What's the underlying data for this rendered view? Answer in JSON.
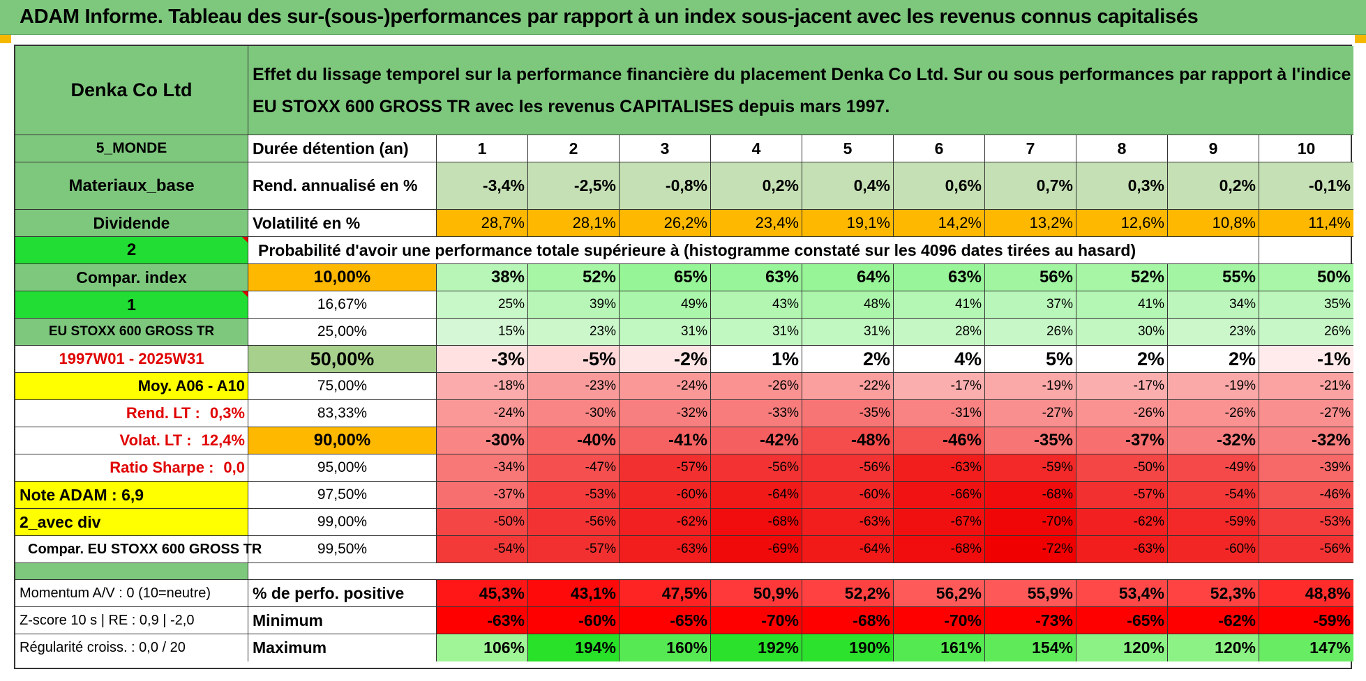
{
  "title": "ADAM Informe. Tableau des sur-(sous-)performances par rapport à un index sous-jacent avec les revenus connus capitalisés",
  "company": "Denka Co Ltd",
  "description": "Effet du lissage temporel sur la performance financière du placement Denka Co Ltd. Sur ou sous performances par rapport à l'indice EU STOXX 600 GROSS TR avec les revenus CAPITALISES depuis mars 1997.",
  "left_labels": {
    "region": "5_MONDE",
    "sector": "Materiaux_base",
    "dividend": "Dividende",
    "two": "2",
    "compar_index": "Compar. index",
    "one": "1",
    "index_name": "EU STOXX 600 GROSS TR",
    "period": "1997W01 - 2025W31",
    "moy": "Moy. A06 - A10",
    "rend_lt_label": "Rend. LT :",
    "rend_lt_value": "0,3%",
    "volat_lt_label": "Volat. LT :",
    "volat_lt_value": "12,4%",
    "sharpe_label": "Ratio Sharpe :",
    "sharpe_value": "0,0",
    "note": "Note ADAM : 6,9",
    "avec_div": "2_avec div",
    "compar_full": "Compar. EU STOXX 600 GROSS TR",
    "momentum": "Momentum A/V : 0 (10=neutre)",
    "zscore": "Z-score 10 s | RE : 0,9 | -2,0",
    "regularite": "Régularité croiss. : 0,0 / 20"
  },
  "row_labels": {
    "duree": "Durée détention (an)",
    "rend": "Rend. annualisé en %",
    "volat": "Volatilité en %",
    "prob_title": "Probabilité d'avoir une performance totale supérieure à (histogramme constaté sur les 4096 dates tirées au hasard)",
    "positive": "% de perfo. positive",
    "minimum": "Minimum",
    "maximum": "Maximum"
  },
  "years": [
    "1",
    "2",
    "3",
    "4",
    "5",
    "6",
    "7",
    "8",
    "9",
    "10"
  ],
  "rend": [
    "-3,4%",
    "-2,5%",
    "-0,8%",
    "0,2%",
    "0,4%",
    "0,6%",
    "0,7%",
    "0,3%",
    "0,2%",
    "-0,1%"
  ],
  "volat": [
    "28,7%",
    "28,1%",
    "26,2%",
    "23,4%",
    "19,1%",
    "14,2%",
    "13,2%",
    "12,6%",
    "10,8%",
    "11,4%"
  ],
  "prob_rows": [
    {
      "threshold": "10,00%",
      "values": [
        "38%",
        "52%",
        "65%",
        "63%",
        "64%",
        "63%",
        "56%",
        "52%",
        "55%",
        "50%"
      ]
    },
    {
      "threshold": "16,67%",
      "values": [
        "25%",
        "39%",
        "49%",
        "43%",
        "48%",
        "41%",
        "37%",
        "41%",
        "34%",
        "35%"
      ]
    },
    {
      "threshold": "25,00%",
      "values": [
        "15%",
        "23%",
        "31%",
        "31%",
        "31%",
        "28%",
        "26%",
        "30%",
        "23%",
        "26%"
      ]
    },
    {
      "threshold": "50,00%",
      "values": [
        "-3%",
        "-5%",
        "-2%",
        "1%",
        "2%",
        "4%",
        "5%",
        "2%",
        "2%",
        "-1%"
      ]
    },
    {
      "threshold": "75,00%",
      "values": [
        "-18%",
        "-23%",
        "-24%",
        "-26%",
        "-22%",
        "-17%",
        "-19%",
        "-17%",
        "-19%",
        "-21%"
      ]
    },
    {
      "threshold": "83,33%",
      "values": [
        "-24%",
        "-30%",
        "-32%",
        "-33%",
        "-35%",
        "-31%",
        "-27%",
        "-26%",
        "-26%",
        "-27%"
      ]
    },
    {
      "threshold": "90,00%",
      "values": [
        "-30%",
        "-40%",
        "-41%",
        "-42%",
        "-48%",
        "-46%",
        "-35%",
        "-37%",
        "-32%",
        "-32%"
      ]
    },
    {
      "threshold": "95,00%",
      "values": [
        "-34%",
        "-47%",
        "-57%",
        "-56%",
        "-56%",
        "-63%",
        "-59%",
        "-50%",
        "-49%",
        "-39%"
      ]
    },
    {
      "threshold": "97,50%",
      "values": [
        "-37%",
        "-53%",
        "-60%",
        "-64%",
        "-60%",
        "-66%",
        "-68%",
        "-57%",
        "-54%",
        "-46%"
      ]
    },
    {
      "threshold": "99,00%",
      "values": [
        "-50%",
        "-56%",
        "-62%",
        "-68%",
        "-63%",
        "-67%",
        "-70%",
        "-62%",
        "-59%",
        "-53%"
      ]
    },
    {
      "threshold": "99,50%",
      "values": [
        "-54%",
        "-57%",
        "-63%",
        "-69%",
        "-64%",
        "-68%",
        "-72%",
        "-63%",
        "-60%",
        "-56%"
      ]
    }
  ],
  "positive": [
    "45,3%",
    "43,1%",
    "47,5%",
    "50,9%",
    "52,2%",
    "56,2%",
    "55,9%",
    "53,4%",
    "52,3%",
    "48,8%"
  ],
  "minimum": [
    "-63%",
    "-60%",
    "-65%",
    "-70%",
    "-68%",
    "-70%",
    "-73%",
    "-65%",
    "-62%",
    "-59%"
  ],
  "maximum": [
    "106%",
    "194%",
    "160%",
    "192%",
    "190%",
    "161%",
    "154%",
    "120%",
    "120%",
    "147%"
  ],
  "colors": {
    "header_green": "#7ec87e",
    "bright_green": "#22dd33",
    "yellow": "#ffff00",
    "orange": "#ffb800",
    "red_text": "#e00000"
  }
}
